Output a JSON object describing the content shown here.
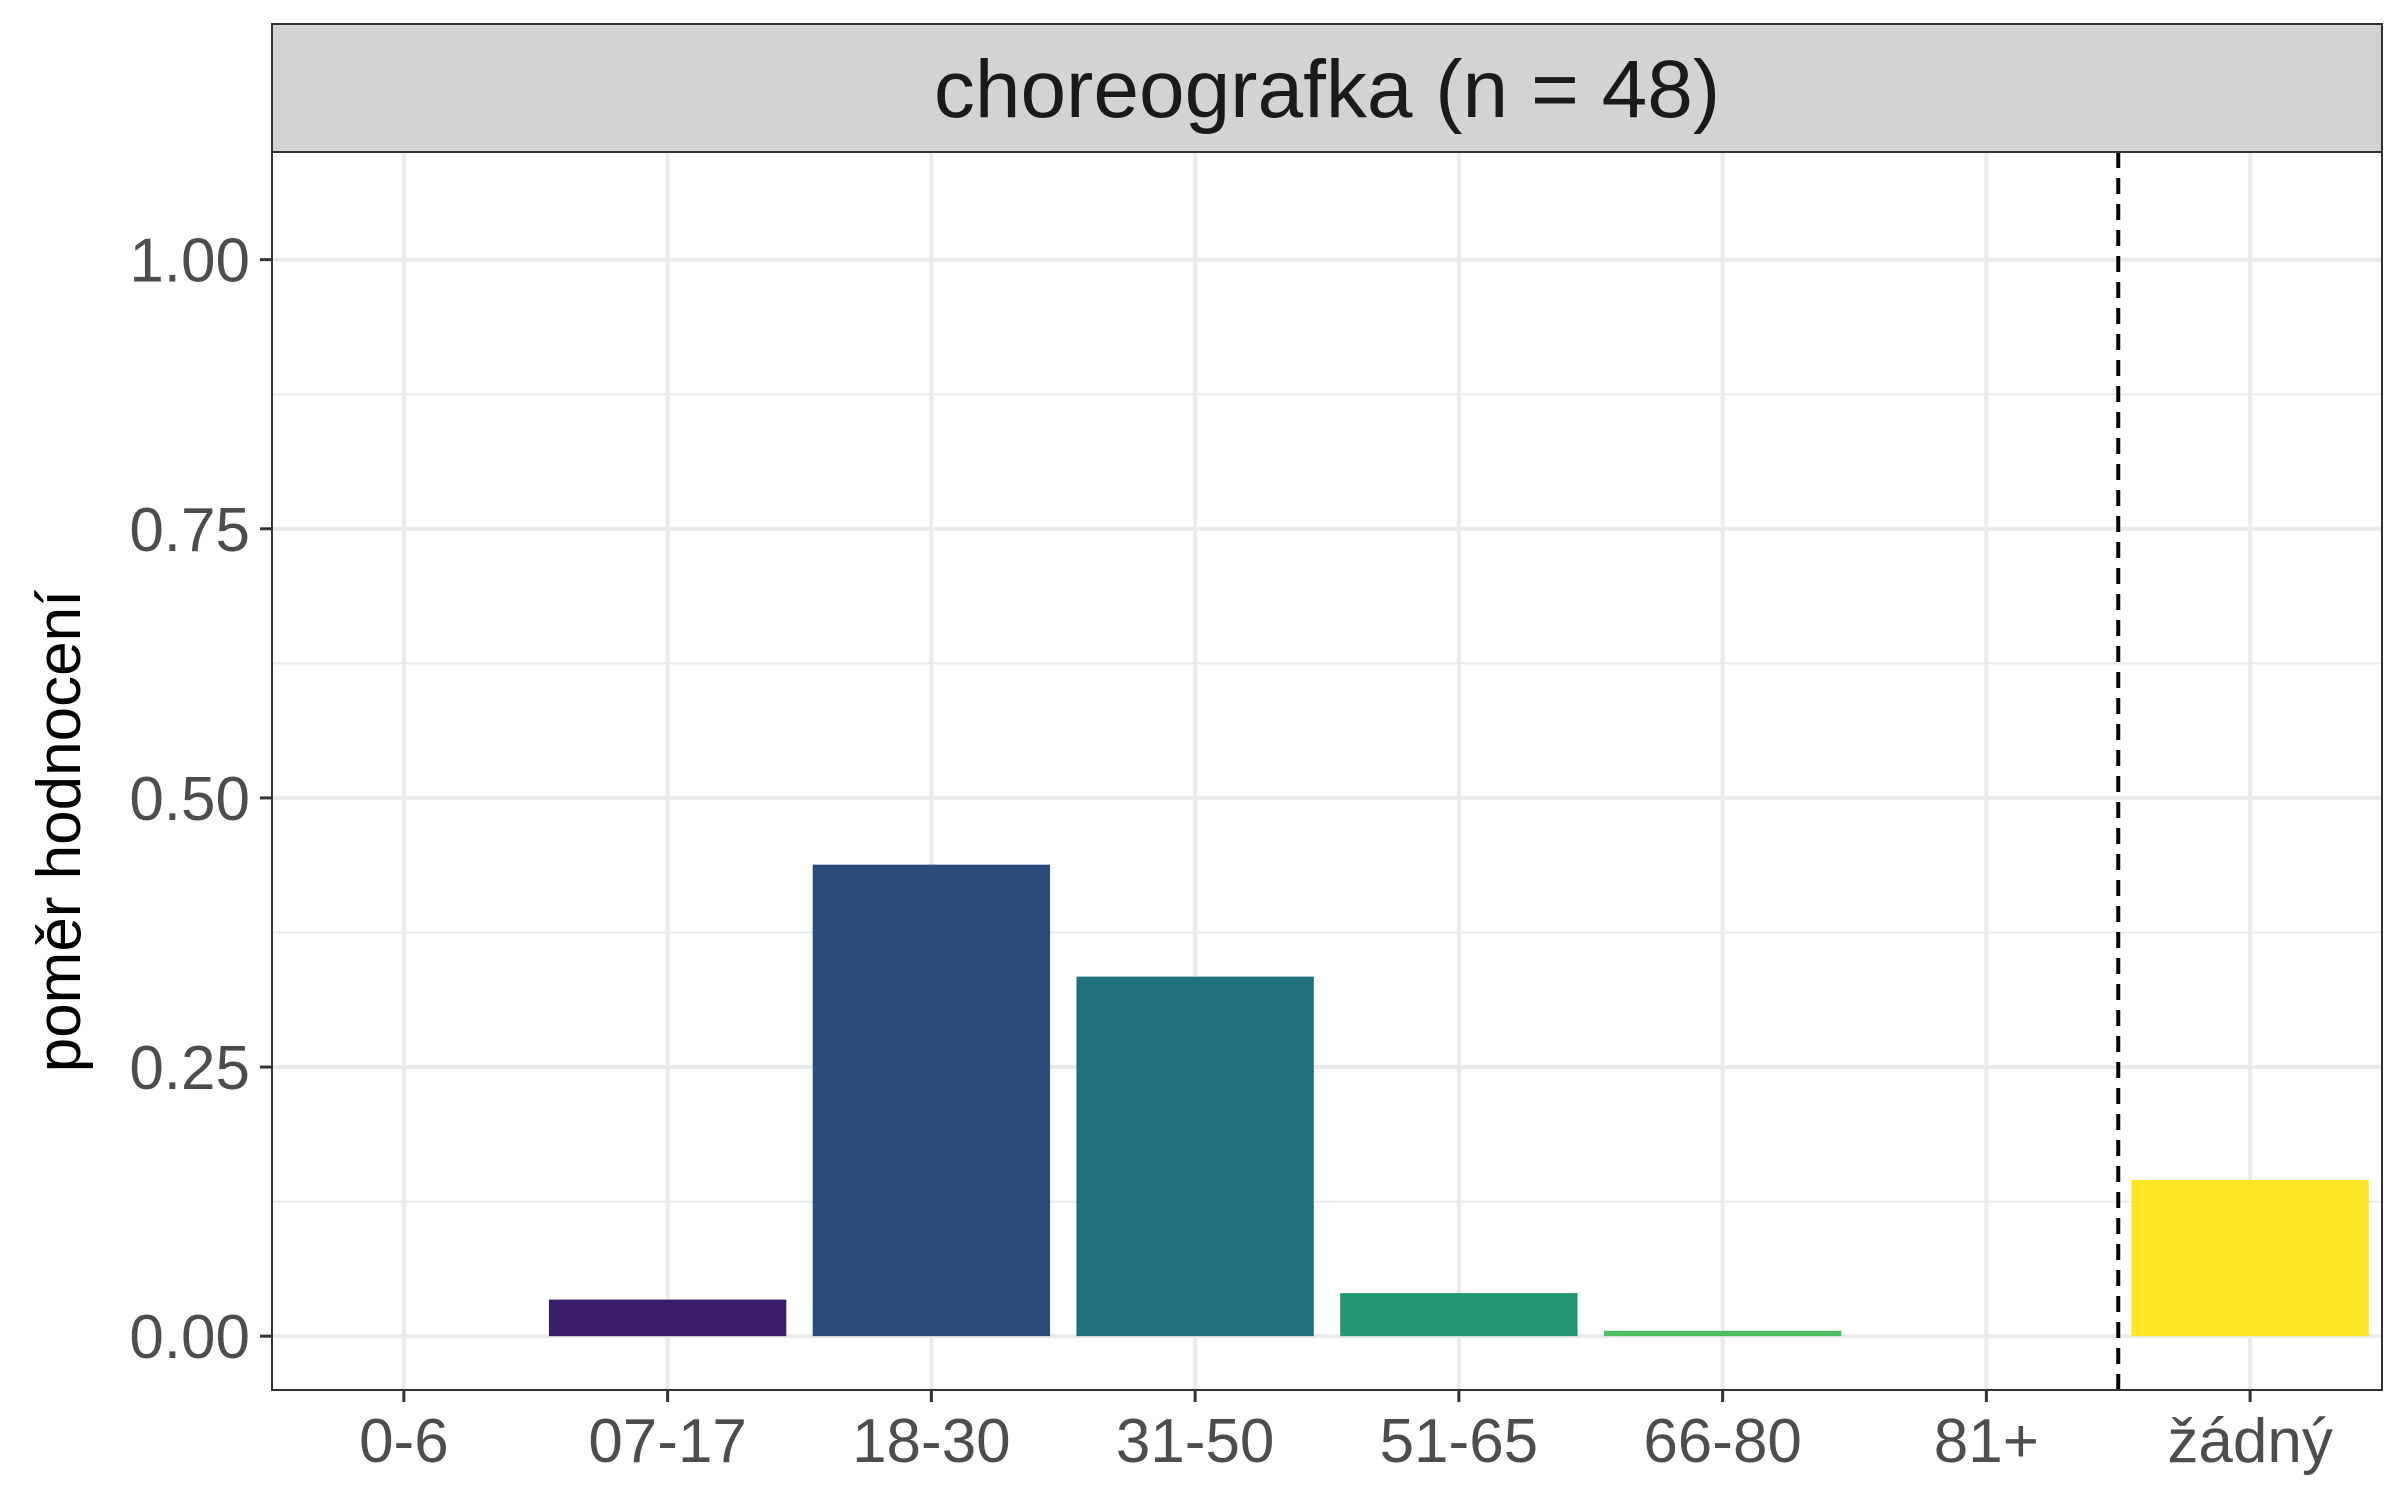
{
  "chart_data": {
    "type": "bar",
    "facet_title": "choreografka (n = 48)",
    "ylabel": "poměr hodnocení",
    "xlabel": "",
    "categories": [
      "0-6",
      "07-17",
      "18-30",
      "31-50",
      "51-65",
      "66-80",
      "81+",
      "žádný"
    ],
    "values": [
      0,
      0.034,
      0.438,
      0.334,
      0.04,
      0.005,
      0,
      0.145
    ],
    "colors": [
      "#440154",
      "#3B1E6A",
      "#2C4A7A",
      "#216F7A",
      "#229674",
      "#4DBE66",
      "#9CD93B",
      "#FDE725"
    ],
    "ylim": [
      -0.05,
      1.1
    ],
    "yticks": [
      0,
      0.25,
      0.5,
      0.75,
      1.0
    ],
    "ytick_labels": [
      "0.00",
      "0.25",
      "0.50",
      "0.75",
      "1.00"
    ],
    "separator_after_category": "81+",
    "grid": true,
    "legend": "none"
  }
}
